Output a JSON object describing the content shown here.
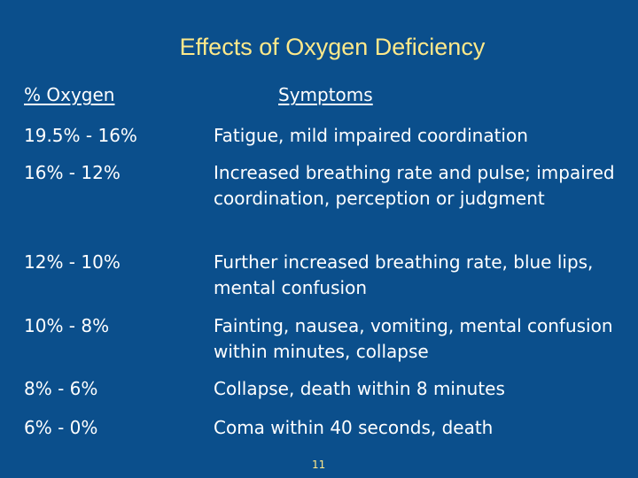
{
  "slide": {
    "title": "Effects of Oxygen Deficiency",
    "headers": {
      "oxygen": "% Oxygen",
      "symptoms": "Symptoms"
    },
    "rows": [
      {
        "range": "19.5% - 16%",
        "symptom": "Fatigue, mild impaired coordination"
      },
      {
        "range": "16% - 12%",
        "symptom": "Increased breathing rate and pulse; impaired coordination, perception or judgment"
      },
      {
        "range": "12% - 10%",
        "symptom": "Further increased breathing rate, blue lips, mental confusion"
      },
      {
        "range": "10% - 8%",
        "symptom": "Fainting, nausea, vomiting, mental confusion within minutes, collapse"
      },
      {
        "range": "8% - 6%",
        "symptom": "Collapse, death within 8 minutes"
      },
      {
        "range": "6% - 0%",
        "symptom": "Coma within 40 seconds, death"
      }
    ],
    "page_number": "11",
    "colors": {
      "background": "#0b4f8c",
      "title": "#ffe98a",
      "text": "#ffffff"
    }
  }
}
